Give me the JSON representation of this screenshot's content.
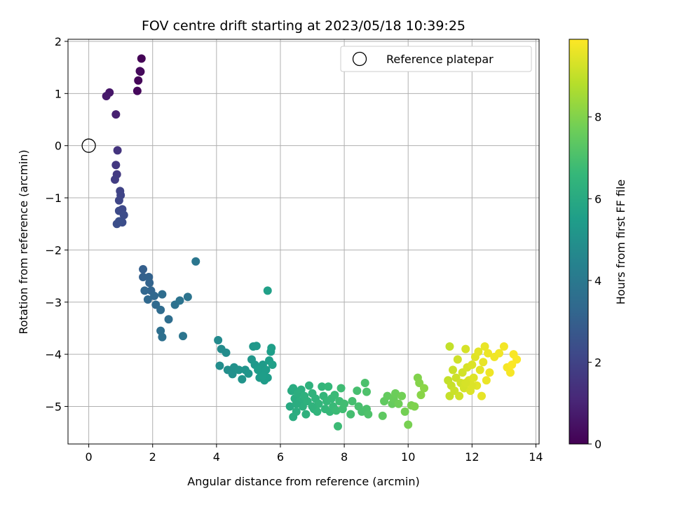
{
  "chart_data": {
    "type": "scatter",
    "title": "FOV centre drift starting at 2023/05/18 10:39:25",
    "xlabel": "Angular distance from reference (arcmin)",
    "ylabel": "Rotation from reference (arcmin)",
    "xlim": [
      -0.65,
      14.1
    ],
    "ylim": [
      -5.72,
      2.04
    ],
    "xticks": [
      "0",
      "2",
      "4",
      "6",
      "8",
      "10",
      "12",
      "14"
    ],
    "yticks": [
      "−5",
      "−4",
      "−3",
      "−2",
      "−1",
      "0",
      "1",
      "2"
    ],
    "grid": true,
    "legend": {
      "placement": "top-right",
      "entries": [
        "Reference platepar"
      ]
    },
    "reference_point": {
      "x": 0,
      "y": 0
    },
    "colorbar": {
      "label": "Hours from first FF file",
      "min": 0,
      "max": 9.9,
      "ticks": [
        "0",
        "2",
        "4",
        "6",
        "8"
      ],
      "colormap": "viridis"
    },
    "colormap_stops": [
      "#440154",
      "#482878",
      "#3e4989",
      "#31688e",
      "#26828e",
      "#1f9e89",
      "#35b779",
      "#6ece58",
      "#b5de2b",
      "#fde725"
    ],
    "points": [
      [
        1.65,
        1.67,
        0.05
      ],
      [
        1.62,
        1.42,
        0.1
      ],
      [
        1.55,
        1.25,
        0.15
      ],
      [
        1.52,
        1.05,
        0.2
      ],
      [
        1.6,
        1.43,
        0.25
      ],
      [
        0.65,
        1.02,
        0.6
      ],
      [
        0.55,
        0.95,
        0.7
      ],
      [
        0.85,
        0.6,
        0.9
      ],
      [
        0.9,
        -0.09,
        1.5
      ],
      [
        0.85,
        -0.37,
        1.6
      ],
      [
        0.88,
        -0.55,
        1.7
      ],
      [
        0.82,
        -0.65,
        1.8
      ],
      [
        0.98,
        -0.87,
        2.0
      ],
      [
        1.0,
        -0.95,
        2.05
      ],
      [
        0.95,
        -1.05,
        2.1
      ],
      [
        1.05,
        -1.22,
        2.2
      ],
      [
        0.95,
        -1.25,
        2.25
      ],
      [
        1.1,
        -1.33,
        2.3
      ],
      [
        1.05,
        -1.47,
        2.35
      ],
      [
        0.88,
        -1.5,
        2.4
      ],
      [
        0.95,
        -1.45,
        2.42
      ],
      [
        1.7,
        -2.37,
        3.0
      ],
      [
        1.7,
        -2.52,
        3.05
      ],
      [
        1.88,
        -2.52,
        3.1
      ],
      [
        1.9,
        -2.63,
        3.15
      ],
      [
        1.95,
        -2.78,
        3.2
      ],
      [
        1.75,
        -2.78,
        3.25
      ],
      [
        2.05,
        -2.88,
        3.3
      ],
      [
        1.85,
        -2.95,
        3.35
      ],
      [
        2.1,
        -3.05,
        3.4
      ],
      [
        2.25,
        -3.15,
        3.45
      ],
      [
        2.3,
        -2.85,
        3.5
      ],
      [
        2.5,
        -3.33,
        3.55
      ],
      [
        2.25,
        -3.55,
        3.6
      ],
      [
        2.3,
        -3.67,
        3.62
      ],
      [
        2.7,
        -3.05,
        3.7
      ],
      [
        2.85,
        -2.97,
        3.75
      ],
      [
        3.1,
        -2.9,
        3.8
      ],
      [
        2.95,
        -3.65,
        3.85
      ],
      [
        3.35,
        -2.22,
        3.9
      ],
      [
        4.05,
        -3.73,
        4.7
      ],
      [
        4.15,
        -3.9,
        4.75
      ],
      [
        4.3,
        -3.97,
        4.8
      ],
      [
        4.1,
        -4.22,
        4.85
      ],
      [
        4.35,
        -4.3,
        4.9
      ],
      [
        4.5,
        -4.38,
        4.95
      ],
      [
        4.55,
        -4.25,
        5.0
      ],
      [
        4.7,
        -4.3,
        5.05
      ],
      [
        4.8,
        -4.48,
        5.1
      ],
      [
        4.9,
        -4.3,
        5.12
      ],
      [
        5.0,
        -4.37,
        5.15
      ],
      [
        5.1,
        -4.1,
        5.2
      ],
      [
        5.15,
        -3.85,
        5.22
      ],
      [
        5.25,
        -3.84,
        5.25
      ],
      [
        5.2,
        -4.2,
        5.3
      ],
      [
        5.3,
        -4.25,
        5.32
      ],
      [
        5.35,
        -4.45,
        5.35
      ],
      [
        5.4,
        -4.35,
        5.38
      ],
      [
        5.45,
        -4.2,
        5.4
      ],
      [
        5.5,
        -4.5,
        5.42
      ],
      [
        5.55,
        -4.3,
        5.45
      ],
      [
        5.6,
        -4.45,
        5.48
      ],
      [
        5.65,
        -4.12,
        5.5
      ],
      [
        5.7,
        -3.95,
        5.52
      ],
      [
        5.72,
        -3.88,
        5.55
      ],
      [
        5.75,
        -4.2,
        5.58
      ],
      [
        5.6,
        -2.78,
        5.6
      ],
      [
        5.3,
        -4.3,
        5.45
      ],
      [
        5.45,
        -4.42,
        5.5
      ],
      [
        6.3,
        -5.0,
        6.0
      ],
      [
        6.35,
        -4.7,
        6.05
      ],
      [
        6.4,
        -4.65,
        6.07
      ],
      [
        6.4,
        -5.2,
        6.1
      ],
      [
        6.45,
        -4.85,
        6.12
      ],
      [
        6.5,
        -5.1,
        6.15
      ],
      [
        6.55,
        -4.75,
        6.18
      ],
      [
        6.6,
        -4.9,
        6.2
      ],
      [
        6.65,
        -4.68,
        6.22
      ],
      [
        6.7,
        -5.0,
        6.25
      ],
      [
        6.75,
        -4.8,
        6.28
      ],
      [
        6.8,
        -5.15,
        6.3
      ],
      [
        6.85,
        -4.9,
        6.32
      ],
      [
        6.9,
        -4.6,
        6.35
      ],
      [
        7.0,
        -4.75,
        6.38
      ],
      [
        7.05,
        -5.05,
        6.4
      ],
      [
        7.1,
        -4.85,
        6.42
      ],
      [
        7.15,
        -5.1,
        6.45
      ],
      [
        7.2,
        -4.95,
        6.48
      ],
      [
        7.3,
        -4.62,
        6.5
      ],
      [
        7.35,
        -4.8,
        6.52
      ],
      [
        7.4,
        -5.05,
        6.55
      ],
      [
        7.45,
        -4.9,
        6.58
      ],
      [
        7.5,
        -4.62,
        6.6
      ],
      [
        7.55,
        -5.1,
        6.62
      ],
      [
        7.6,
        -4.85,
        6.65
      ],
      [
        7.65,
        -5.0,
        6.68
      ],
      [
        7.7,
        -4.78,
        6.7
      ],
      [
        7.75,
        -5.08,
        6.72
      ],
      [
        7.8,
        -5.38,
        6.75
      ],
      [
        7.85,
        -4.9,
        6.78
      ],
      [
        7.9,
        -4.65,
        6.8
      ],
      [
        7.95,
        -5.05,
        6.82
      ],
      [
        8.0,
        -4.95,
        6.85
      ],
      [
        8.2,
        -5.15,
        6.9
      ],
      [
        8.25,
        -4.9,
        6.92
      ],
      [
        8.4,
        -4.7,
        6.95
      ],
      [
        8.45,
        -5.0,
        6.98
      ],
      [
        8.55,
        -5.1,
        7.0
      ],
      [
        8.7,
        -5.05,
        7.02
      ],
      [
        8.65,
        -4.55,
        7.05
      ],
      [
        8.7,
        -4.72,
        7.08
      ],
      [
        8.75,
        -5.15,
        7.1
      ],
      [
        6.5,
        -4.95,
        6.1
      ],
      [
        7.0,
        -5.0,
        6.4
      ],
      [
        9.2,
        -5.18,
        7.4
      ],
      [
        9.25,
        -4.9,
        7.45
      ],
      [
        9.35,
        -4.8,
        7.5
      ],
      [
        9.5,
        -4.95,
        7.55
      ],
      [
        9.55,
        -4.85,
        7.6
      ],
      [
        9.6,
        -4.75,
        7.65
      ],
      [
        9.7,
        -4.95,
        7.7
      ],
      [
        9.8,
        -4.8,
        7.75
      ],
      [
        9.9,
        -5.1,
        7.8
      ],
      [
        10.0,
        -5.35,
        7.85
      ],
      [
        10.1,
        -4.98,
        7.9
      ],
      [
        10.2,
        -5.0,
        7.95
      ],
      [
        10.3,
        -4.45,
        8.0
      ],
      [
        10.35,
        -4.55,
        8.05
      ],
      [
        10.4,
        -4.78,
        8.1
      ],
      [
        10.5,
        -4.65,
        8.15
      ],
      [
        11.3,
        -3.85,
        9.0
      ],
      [
        11.25,
        -4.5,
        9.02
      ],
      [
        11.3,
        -4.8,
        9.05
      ],
      [
        11.35,
        -4.6,
        9.08
      ],
      [
        11.4,
        -4.3,
        9.1
      ],
      [
        11.45,
        -4.7,
        9.12
      ],
      [
        11.5,
        -4.45,
        9.15
      ],
      [
        11.55,
        -4.1,
        9.18
      ],
      [
        11.6,
        -4.8,
        9.2
      ],
      [
        11.65,
        -4.55,
        9.22
      ],
      [
        11.7,
        -4.35,
        9.25
      ],
      [
        11.75,
        -4.65,
        9.28
      ],
      [
        11.8,
        -3.9,
        9.3
      ],
      [
        11.85,
        -4.25,
        9.32
      ],
      [
        11.9,
        -4.5,
        9.35
      ],
      [
        11.95,
        -4.7,
        9.38
      ],
      [
        12.0,
        -4.2,
        9.4
      ],
      [
        12.05,
        -4.45,
        9.42
      ],
      [
        12.1,
        -4.05,
        9.45
      ],
      [
        12.15,
        -4.6,
        9.48
      ],
      [
        12.2,
        -3.95,
        9.5
      ],
      [
        12.25,
        -4.3,
        9.52
      ],
      [
        12.3,
        -4.8,
        9.55
      ],
      [
        12.35,
        -4.15,
        9.58
      ],
      [
        12.4,
        -3.85,
        9.6
      ],
      [
        12.45,
        -4.5,
        9.62
      ],
      [
        12.5,
        -3.98,
        9.65
      ],
      [
        12.55,
        -4.35,
        9.68
      ],
      [
        12.7,
        -4.05,
        9.7
      ],
      [
        12.85,
        -3.98,
        9.72
      ],
      [
        13.0,
        -3.85,
        9.75
      ],
      [
        13.1,
        -4.25,
        9.78
      ],
      [
        13.2,
        -4.35,
        9.8
      ],
      [
        13.3,
        -4.0,
        9.82
      ],
      [
        13.4,
        -4.1,
        9.85
      ],
      [
        13.25,
        -4.2,
        9.87
      ],
      [
        12.0,
        -4.6,
        9.4
      ],
      [
        11.8,
        -4.55,
        9.3
      ]
    ]
  }
}
